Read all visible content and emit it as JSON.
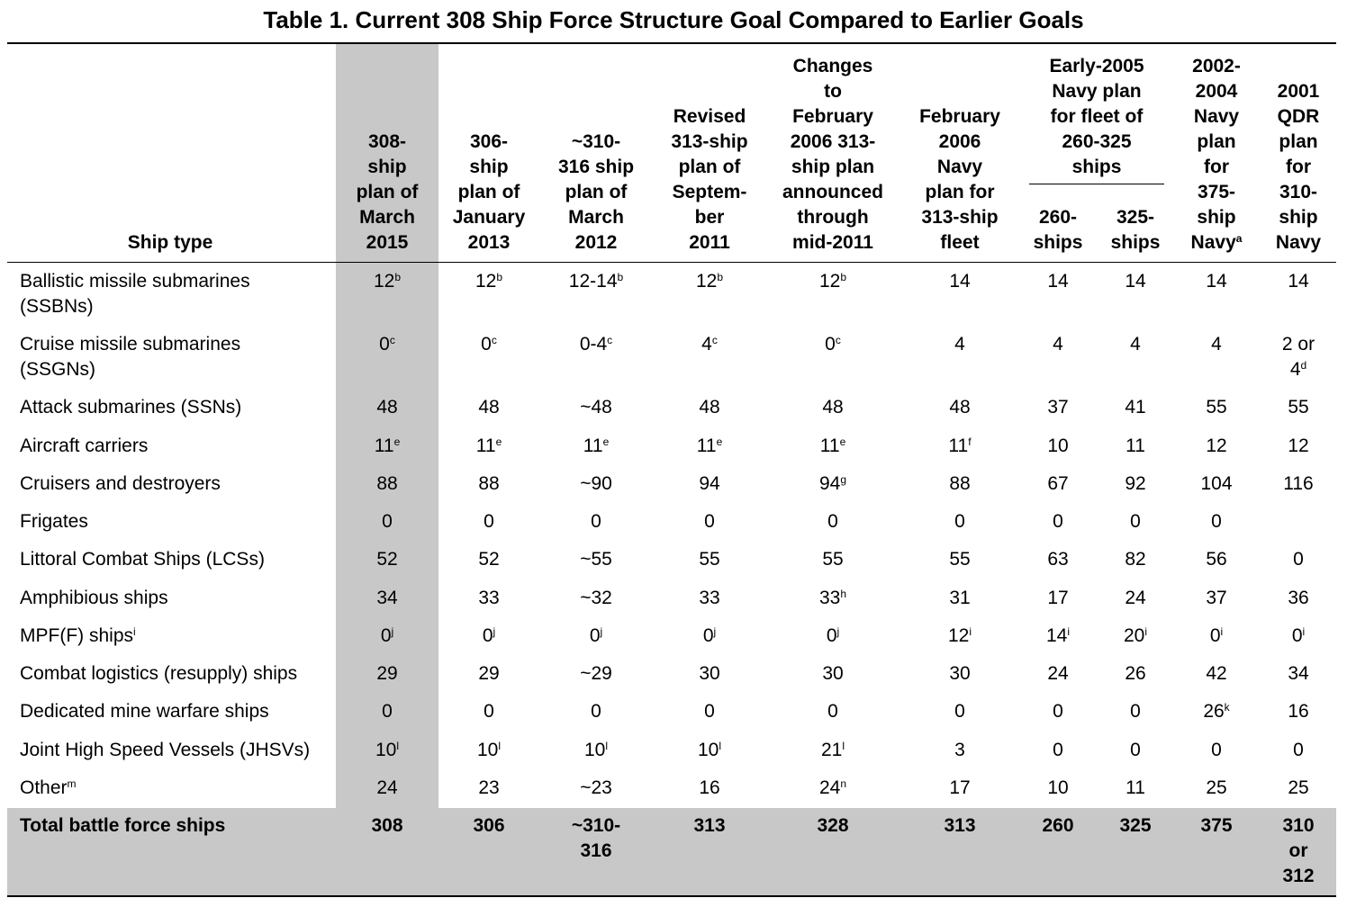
{
  "title": "Table 1. Current 308 Ship Force Structure Goal Compared to Earlier Goals",
  "header": {
    "ship_type": "Ship type",
    "columns": [
      [
        "308-",
        "ship",
        "plan of",
        "March",
        "2015"
      ],
      [
        "306-",
        "ship",
        "plan of",
        "January",
        "2013"
      ],
      [
        "~310-",
        "316 ship",
        "plan of",
        "March",
        "2012"
      ],
      [
        "Revised",
        "313-ship",
        "plan of",
        "Septem-",
        "ber",
        "2011"
      ],
      [
        "Changes",
        "to",
        "February",
        "2006 313-",
        "ship plan",
        "announced",
        "through",
        "mid-2011"
      ],
      [
        "February",
        "2006",
        "Navy",
        "plan for",
        "313-ship",
        "fleet"
      ],
      [
        "260-",
        "ships"
      ],
      [
        "325-",
        "ships"
      ],
      [
        "2002-",
        "2004",
        "Navy",
        "plan",
        "for",
        "375-",
        "ship",
        {
          "text": "Navy",
          "sup": "a"
        }
      ],
      [
        "2001",
        "QDR",
        "plan",
        "for",
        "310-",
        "ship",
        "Navy"
      ]
    ],
    "group": [
      "Early-2005",
      "Navy plan",
      "for fleet of",
      "260-325",
      "ships"
    ]
  },
  "rows": [
    {
      "label": [
        "Ballistic missile submarines",
        "(SSBNs)"
      ],
      "values": [
        {
          "text": "12",
          "sup": "b"
        },
        {
          "text": "12",
          "sup": "b"
        },
        {
          "text": "12-14",
          "sup": "b"
        },
        {
          "text": "12",
          "sup": "b"
        },
        {
          "text": "12",
          "sup": "b"
        },
        "14",
        "14",
        "14",
        "14",
        "14"
      ]
    },
    {
      "label": [
        "Cruise missile submarines",
        "(SSGNs)"
      ],
      "values": [
        {
          "text": "0",
          "sup": "c"
        },
        {
          "text": "0",
          "sup": "c"
        },
        {
          "text": "0-4",
          "sup": "c"
        },
        {
          "text": "4",
          "sup": "c"
        },
        {
          "text": "0",
          "sup": "c"
        },
        "4",
        "4",
        "4",
        "4",
        [
          "2 or",
          {
            "text": "4",
            "sup": "d"
          }
        ]
      ]
    },
    {
      "label": [
        "Attack submarines (SSNs)"
      ],
      "values": [
        "48",
        "48",
        "~48",
        "48",
        "48",
        "48",
        "37",
        "41",
        "55",
        "55"
      ]
    },
    {
      "label": [
        "Aircraft carriers"
      ],
      "values": [
        {
          "text": "11",
          "sup": "e"
        },
        {
          "text": "11",
          "sup": "e"
        },
        {
          "text": "11",
          "sup": "e"
        },
        {
          "text": "11",
          "sup": "e"
        },
        {
          "text": "11",
          "sup": "e"
        },
        {
          "text": "11",
          "sup": "f"
        },
        "10",
        "11",
        "12",
        "12"
      ]
    },
    {
      "label": [
        "Cruisers and destroyers"
      ],
      "values": [
        "88",
        "88",
        "~90",
        "94",
        {
          "text": "94",
          "sup": "g"
        },
        "88",
        "67",
        "92",
        "104",
        "116"
      ]
    },
    {
      "label": [
        "Frigates"
      ],
      "values": [
        "0",
        "0",
        "0",
        "0",
        "0",
        "0",
        "0",
        "0",
        "0",
        null
      ]
    },
    {
      "label": [
        "Littoral Combat Ships (LCSs)"
      ],
      "values": [
        "52",
        "52",
        "~55",
        "55",
        "55",
        "55",
        "63",
        "82",
        "56",
        "0"
      ]
    },
    {
      "label": [
        "Amphibious ships"
      ],
      "values": [
        "34",
        "33",
        "~32",
        "33",
        {
          "text": "33",
          "sup": "h"
        },
        "31",
        "17",
        "24",
        "37",
        "36"
      ]
    },
    {
      "label": [
        {
          "text": "MPF(F) ships",
          "sup": "i"
        }
      ],
      "values": [
        {
          "text": "0",
          "sup": "j"
        },
        {
          "text": "0",
          "sup": "j"
        },
        {
          "text": "0",
          "sup": "j"
        },
        {
          "text": "0",
          "sup": "j"
        },
        {
          "text": "0",
          "sup": "j"
        },
        {
          "text": "12",
          "sup": "i"
        },
        {
          "text": "14",
          "sup": "i"
        },
        {
          "text": "20",
          "sup": "i"
        },
        {
          "text": "0",
          "sup": "i"
        },
        {
          "text": "0",
          "sup": "i"
        }
      ]
    },
    {
      "label": [
        "Combat logistics (resupply) ships"
      ],
      "values": [
        "29",
        "29",
        "~29",
        "30",
        "30",
        "30",
        "24",
        "26",
        "42",
        "34"
      ]
    },
    {
      "label": [
        "Dedicated mine warfare ships"
      ],
      "values": [
        "0",
        "0",
        "0",
        "0",
        "0",
        "0",
        "0",
        "0",
        {
          "text": "26",
          "sup": "k"
        },
        "16"
      ]
    },
    {
      "label": [
        "Joint High Speed Vessels (JHSVs)"
      ],
      "values": [
        {
          "text": "10",
          "sup": "l"
        },
        {
          "text": "10",
          "sup": "l"
        },
        {
          "text": "10",
          "sup": "l"
        },
        {
          "text": "10",
          "sup": "l"
        },
        {
          "text": "21",
          "sup": "l"
        },
        "3",
        "0",
        "0",
        "0",
        "0"
      ]
    },
    {
      "label": [
        {
          "text": "Other",
          "sup": "m"
        }
      ],
      "values": [
        "24",
        "23",
        "~23",
        "16",
        {
          "text": "24",
          "sup": "n"
        },
        "17",
        "10",
        "11",
        "25",
        "25"
      ]
    }
  ],
  "total": {
    "label": "Total battle force ships",
    "values": [
      "308",
      "306",
      [
        "~310-",
        "316"
      ],
      "313",
      "328",
      "313",
      "260",
      "325",
      "375",
      [
        "310",
        "or",
        "312"
      ]
    ]
  }
}
